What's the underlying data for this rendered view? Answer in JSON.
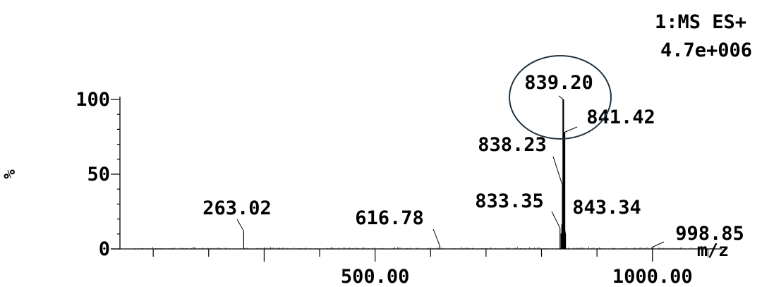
{
  "chart_data": {
    "type": "bar",
    "mode": "1:MS ES+",
    "max_intensity": "4.7e+006",
    "ylabel": "%",
    "xlabel": "m/z",
    "y_ticks": [
      "0",
      "50",
      "100"
    ],
    "x_tick_labels": [
      "500.00",
      "1000.00"
    ],
    "xlim": [
      40,
      1125
    ],
    "ylim": [
      0,
      100
    ],
    "peaks": [
      {
        "mz": 263.02,
        "intensity": 12,
        "label": "263.02"
      },
      {
        "mz": 616.78,
        "intensity": 2,
        "label": "616.78"
      },
      {
        "mz": 833.35,
        "intensity": 14,
        "label": "833.35"
      },
      {
        "mz": 838.23,
        "intensity": 42,
        "label": "838.23"
      },
      {
        "mz": 839.2,
        "intensity": 100,
        "label": "839.20"
      },
      {
        "mz": 841.42,
        "intensity": 78,
        "label": "841.42"
      },
      {
        "mz": 843.34,
        "intensity": 10,
        "label": "843.34"
      },
      {
        "mz": 998.85,
        "intensity": 1,
        "label": "998.85"
      }
    ],
    "highlight": {
      "target": "839.20",
      "color": "#1f3340"
    },
    "colors": {
      "trace": "#000000"
    }
  }
}
